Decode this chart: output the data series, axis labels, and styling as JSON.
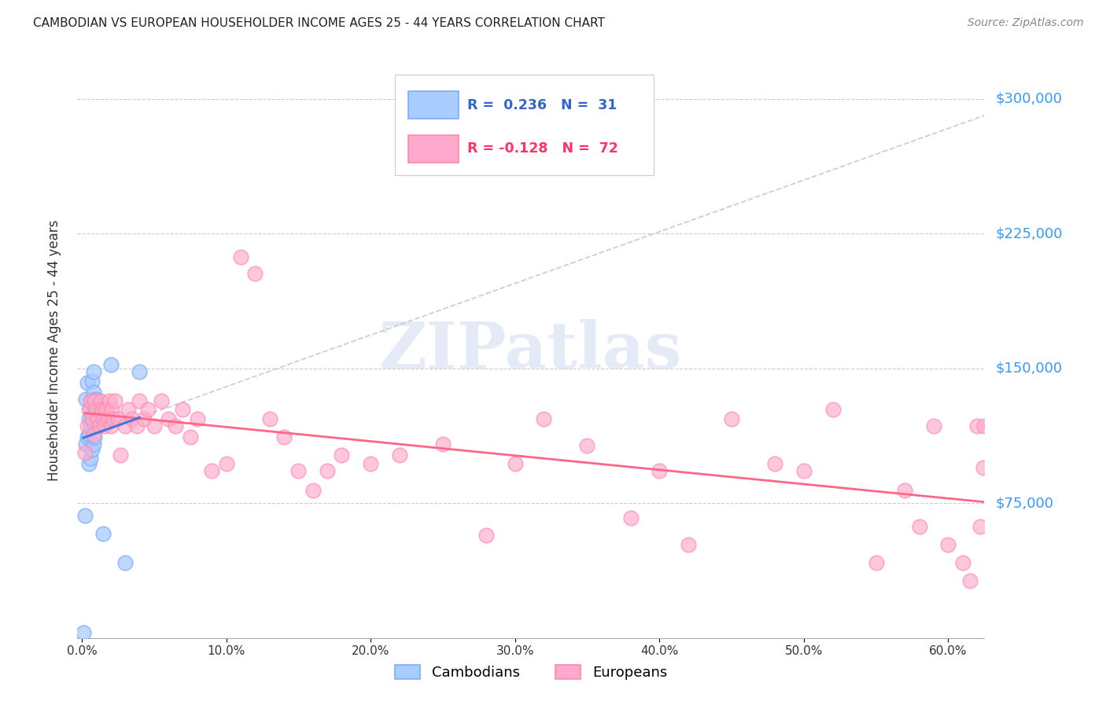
{
  "title": "CAMBODIAN VS EUROPEAN HOUSEHOLDER INCOME AGES 25 - 44 YEARS CORRELATION CHART",
  "source": "Source: ZipAtlas.com",
  "ylabel": "Householder Income Ages 25 - 44 years",
  "xlabel_ticks": [
    "0.0%",
    "10.0%",
    "20.0%",
    "30.0%",
    "40.0%",
    "50.0%",
    "60.0%"
  ],
  "xlabel_vals": [
    0.0,
    0.1,
    0.2,
    0.3,
    0.4,
    0.5,
    0.6
  ],
  "ytick_labels": [
    "$75,000",
    "$150,000",
    "$225,000",
    "$300,000"
  ],
  "ytick_vals": [
    75000,
    150000,
    225000,
    300000
  ],
  "ymin": 0,
  "ymax": 320000,
  "xmin": -0.003,
  "xmax": 0.625,
  "trendline_color_blue": "#4477dd",
  "trendline_color_pink": "#ff6688",
  "dashed_color": "#bbccdd",
  "watermark_color": "#ccd9ee",
  "title_fontsize": 11,
  "source_fontsize": 10,
  "cambodian_x": [
    0.001,
    0.002,
    0.003,
    0.003,
    0.004,
    0.004,
    0.005,
    0.005,
    0.005,
    0.006,
    0.006,
    0.006,
    0.007,
    0.007,
    0.007,
    0.007,
    0.008,
    0.008,
    0.008,
    0.008,
    0.009,
    0.009,
    0.009,
    0.009,
    0.01,
    0.01,
    0.011,
    0.015,
    0.02,
    0.03,
    0.04
  ],
  "cambodian_y": [
    3000,
    68000,
    108000,
    133000,
    112000,
    142000,
    97000,
    113000,
    122000,
    100000,
    118000,
    128000,
    105000,
    122000,
    133000,
    143000,
    108000,
    122000,
    137000,
    148000,
    112000,
    128000,
    118000,
    128000,
    122000,
    133000,
    122000,
    58000,
    152000,
    42000,
    148000
  ],
  "european_x": [
    0.002,
    0.004,
    0.005,
    0.006,
    0.007,
    0.008,
    0.009,
    0.01,
    0.011,
    0.012,
    0.013,
    0.014,
    0.015,
    0.016,
    0.017,
    0.018,
    0.019,
    0.02,
    0.021,
    0.022,
    0.023,
    0.025,
    0.027,
    0.03,
    0.032,
    0.035,
    0.038,
    0.04,
    0.043,
    0.046,
    0.05,
    0.055,
    0.06,
    0.065,
    0.07,
    0.075,
    0.08,
    0.09,
    0.1,
    0.11,
    0.12,
    0.13,
    0.14,
    0.15,
    0.16,
    0.17,
    0.18,
    0.2,
    0.22,
    0.25,
    0.28,
    0.3,
    0.32,
    0.35,
    0.38,
    0.4,
    0.42,
    0.45,
    0.48,
    0.5,
    0.52,
    0.55,
    0.57,
    0.58,
    0.59,
    0.6,
    0.61,
    0.615,
    0.62,
    0.622,
    0.624,
    0.625
  ],
  "european_y": [
    103000,
    118000,
    127000,
    132000,
    122000,
    113000,
    132000,
    127000,
    122000,
    118000,
    132000,
    127000,
    122000,
    118000,
    127000,
    122000,
    132000,
    118000,
    127000,
    122000,
    132000,
    122000,
    102000,
    118000,
    127000,
    122000,
    118000,
    132000,
    122000,
    127000,
    118000,
    132000,
    122000,
    118000,
    127000,
    112000,
    122000,
    93000,
    97000,
    212000,
    203000,
    122000,
    112000,
    93000,
    82000,
    93000,
    102000,
    97000,
    102000,
    108000,
    57000,
    97000,
    122000,
    107000,
    67000,
    93000,
    52000,
    122000,
    97000,
    93000,
    127000,
    42000,
    82000,
    62000,
    118000,
    52000,
    42000,
    32000,
    118000,
    62000,
    95000,
    118000
  ]
}
